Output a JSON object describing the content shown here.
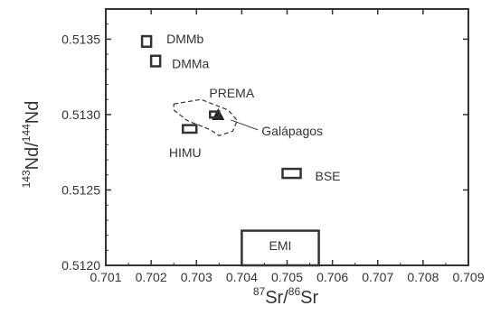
{
  "chart_data": {
    "type": "scatter",
    "xlabel": {
      "sup1": "87",
      "main1": "Sr/",
      "sup2": "86",
      "main2": "Sr"
    },
    "ylabel": {
      "sup1": "143",
      "main1": "Nd/",
      "sup2": "144",
      "main2": "Nd"
    },
    "xlim": [
      0.701,
      0.709
    ],
    "ylim": [
      0.512,
      0.5137
    ],
    "xticks": [
      "0.701",
      "0.702",
      "0.703",
      "0.704",
      "0.705",
      "0.706",
      "0.707",
      "0.708",
      "0.709"
    ],
    "xtick_values": [
      0.701,
      0.702,
      0.703,
      0.704,
      0.705,
      0.706,
      0.707,
      0.708,
      0.709
    ],
    "yticks": [
      "0.5120",
      "0.5125",
      "0.5130",
      "0.5135"
    ],
    "ytick_values": [
      0.512,
      0.5125,
      0.513,
      0.5135
    ],
    "grid": false,
    "reservoirs": [
      {
        "label": "DMMb",
        "x": [
          0.7018,
          0.702
        ],
        "y": [
          0.51345,
          0.51352
        ]
      },
      {
        "label": "DMMa",
        "x": [
          0.702,
          0.7022
        ],
        "y": [
          0.51332,
          0.51339
        ]
      },
      {
        "label": "PREMA",
        "x": [
          0.7033,
          0.7035
        ],
        "y": [
          0.51298,
          0.51302
        ]
      },
      {
        "label": "HIMU",
        "x": [
          0.7027,
          0.703
        ],
        "y": [
          0.51288,
          0.51293
        ]
      },
      {
        "label": "BSE",
        "x": [
          0.7049,
          0.7053
        ],
        "y": [
          0.51258,
          0.51264
        ]
      },
      {
        "label": "EMI",
        "x": [
          0.704,
          0.7057
        ],
        "y": [
          0.512,
          0.51223
        ]
      }
    ],
    "field": {
      "label": "Galápagos",
      "outline": [
        [
          0.7025,
          0.51307
        ],
        [
          0.7031,
          0.5131
        ],
        [
          0.7037,
          0.51303
        ],
        [
          0.7039,
          0.51296
        ],
        [
          0.7038,
          0.51289
        ],
        [
          0.7035,
          0.51286
        ],
        [
          0.7033,
          0.5129
        ],
        [
          0.7028,
          0.51296
        ],
        [
          0.7025,
          0.51303
        ]
      ],
      "point": {
        "x": 0.70348,
        "y": 0.513
      }
    }
  }
}
